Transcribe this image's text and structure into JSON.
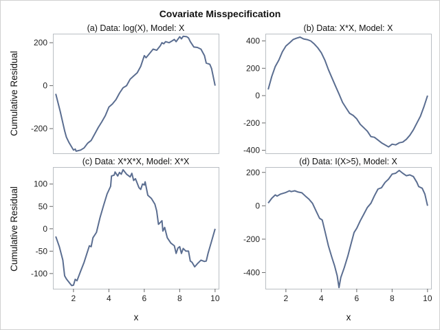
{
  "chart_data": {
    "title": "Covariate Misspecification",
    "ylabel": "Cumulative Residual",
    "xlabel": "x",
    "panels": [
      {
        "type": "line",
        "title": "(a) Data: log(X), Model: X",
        "xlim": [
          0.84,
          10.2
        ],
        "ylim": [
          -315,
          242
        ],
        "xticks": [
          2,
          4,
          6,
          8,
          10
        ],
        "yticks": [
          200,
          0,
          -200
        ],
        "points": [
          [
            1,
            -38
          ],
          [
            1.25,
            -120
          ],
          [
            1.5,
            -210
          ],
          [
            1.6,
            -240
          ],
          [
            1.75,
            -265
          ],
          [
            2,
            -300
          ],
          [
            2.1,
            -295
          ],
          [
            2.15,
            -305
          ],
          [
            2.4,
            -300
          ],
          [
            2.6,
            -290
          ],
          [
            2.8,
            -268
          ],
          [
            3,
            -255
          ],
          [
            3.2,
            -225
          ],
          [
            3.4,
            -195
          ],
          [
            3.6,
            -168
          ],
          [
            3.8,
            -140
          ],
          [
            4,
            -100
          ],
          [
            4.2,
            -85
          ],
          [
            4.4,
            -65
          ],
          [
            4.6,
            -35
          ],
          [
            4.8,
            -10
          ],
          [
            5,
            0
          ],
          [
            5.2,
            30
          ],
          [
            5.4,
            45
          ],
          [
            5.6,
            60
          ],
          [
            5.8,
            90
          ],
          [
            6,
            140
          ],
          [
            6.1,
            130
          ],
          [
            6.3,
            150
          ],
          [
            6.5,
            170
          ],
          [
            6.7,
            165
          ],
          [
            6.9,
            185
          ],
          [
            7,
            200
          ],
          [
            7.1,
            195
          ],
          [
            7.2,
            205
          ],
          [
            7.4,
            200
          ],
          [
            7.6,
            210
          ],
          [
            7.7,
            215
          ],
          [
            7.8,
            205
          ],
          [
            8,
            228
          ],
          [
            8.1,
            218
          ],
          [
            8.2,
            230
          ],
          [
            8.4,
            228
          ],
          [
            8.5,
            222
          ],
          [
            8.6,
            205
          ],
          [
            8.8,
            180
          ],
          [
            9,
            178
          ],
          [
            9.2,
            170
          ],
          [
            9.4,
            140
          ],
          [
            9.5,
            105
          ],
          [
            9.7,
            100
          ],
          [
            9.8,
            80
          ],
          [
            10,
            0
          ]
        ]
      },
      {
        "type": "line",
        "title": "(b) Data: X*X, Model: X",
        "xlim": [
          0.84,
          10.2
        ],
        "ylim": [
          -422,
          453
        ],
        "xticks": [
          2,
          4,
          6,
          8,
          10
        ],
        "yticks": [
          400,
          200,
          0,
          -200,
          -400
        ],
        "points": [
          [
            1,
            45
          ],
          [
            1.2,
            140
          ],
          [
            1.4,
            213
          ],
          [
            1.6,
            260
          ],
          [
            1.8,
            320
          ],
          [
            2,
            363
          ],
          [
            2.2,
            385
          ],
          [
            2.4,
            410
          ],
          [
            2.6,
            420
          ],
          [
            2.8,
            428
          ],
          [
            3,
            415
          ],
          [
            3.2,
            410
          ],
          [
            3.4,
            400
          ],
          [
            3.6,
            378
          ],
          [
            3.8,
            350
          ],
          [
            4,
            313
          ],
          [
            4.2,
            260
          ],
          [
            4.4,
            190
          ],
          [
            4.6,
            130
          ],
          [
            4.8,
            70
          ],
          [
            5,
            12
          ],
          [
            5.2,
            -50
          ],
          [
            5.4,
            -90
          ],
          [
            5.6,
            -130
          ],
          [
            5.8,
            -145
          ],
          [
            6,
            -170
          ],
          [
            6.2,
            -210
          ],
          [
            6.4,
            -235
          ],
          [
            6.6,
            -260
          ],
          [
            6.8,
            -300
          ],
          [
            7,
            -305
          ],
          [
            7.2,
            -325
          ],
          [
            7.4,
            -345
          ],
          [
            7.6,
            -360
          ],
          [
            7.8,
            -375
          ],
          [
            8,
            -355
          ],
          [
            8.2,
            -360
          ],
          [
            8.4,
            -345
          ],
          [
            8.6,
            -340
          ],
          [
            8.8,
            -320
          ],
          [
            9,
            -290
          ],
          [
            9.2,
            -250
          ],
          [
            9.4,
            -200
          ],
          [
            9.6,
            -150
          ],
          [
            9.8,
            -80
          ],
          [
            10,
            0
          ]
        ]
      },
      {
        "type": "line",
        "title": "(c) Data: X*X*X, Model: X*X",
        "xlim": [
          0.84,
          10.2
        ],
        "ylim": [
          -134,
          138
        ],
        "xticks": [
          2,
          4,
          6,
          8,
          10
        ],
        "yticks": [
          100,
          50,
          0,
          -50,
          -100
        ],
        "points": [
          [
            1,
            -17
          ],
          [
            1.2,
            -40
          ],
          [
            1.4,
            -70
          ],
          [
            1.5,
            -105
          ],
          [
            1.6,
            -112
          ],
          [
            1.8,
            -122
          ],
          [
            1.9,
            -127
          ],
          [
            2,
            -126
          ],
          [
            2.1,
            -113
          ],
          [
            2.2,
            -116
          ],
          [
            2.4,
            -95
          ],
          [
            2.6,
            -75
          ],
          [
            2.8,
            -50
          ],
          [
            2.9,
            -38
          ],
          [
            3,
            -40
          ],
          [
            3.1,
            -20
          ],
          [
            3.3,
            -8
          ],
          [
            3.5,
            25
          ],
          [
            3.7,
            52
          ],
          [
            3.9,
            78
          ],
          [
            4.1,
            95
          ],
          [
            4.15,
            118
          ],
          [
            4.3,
            120
          ],
          [
            4.35,
            127
          ],
          [
            4.5,
            118
          ],
          [
            4.6,
            126
          ],
          [
            4.7,
            122
          ],
          [
            4.8,
            132
          ],
          [
            5,
            122
          ],
          [
            5.2,
            116
          ],
          [
            5.3,
            124
          ],
          [
            5.4,
            108
          ],
          [
            5.5,
            112
          ],
          [
            5.7,
            92
          ],
          [
            5.8,
            88
          ],
          [
            5.9,
            100
          ],
          [
            6,
            98
          ],
          [
            6.05,
            105
          ],
          [
            6.2,
            75
          ],
          [
            6.4,
            68
          ],
          [
            6.6,
            55
          ],
          [
            6.7,
            40
          ],
          [
            6.8,
            10
          ],
          [
            7,
            18
          ],
          [
            7.05,
            -5
          ],
          [
            7.15,
            3
          ],
          [
            7.3,
            -20
          ],
          [
            7.5,
            -32
          ],
          [
            7.7,
            -38
          ],
          [
            7.8,
            -55
          ],
          [
            7.9,
            -43
          ],
          [
            8,
            -40
          ],
          [
            8.1,
            -55
          ],
          [
            8.2,
            -44
          ],
          [
            8.35,
            -50
          ],
          [
            8.5,
            -50
          ],
          [
            8.6,
            -72
          ],
          [
            8.7,
            -75
          ],
          [
            8.85,
            -85
          ],
          [
            9,
            -78
          ],
          [
            9.2,
            -70
          ],
          [
            9.4,
            -73
          ],
          [
            9.5,
            -72
          ],
          [
            9.6,
            -55
          ],
          [
            9.8,
            -28
          ],
          [
            10,
            0
          ]
        ]
      },
      {
        "type": "line",
        "title": "(d) Data: I(X>5), Model: X",
        "xlim": [
          0.84,
          10.2
        ],
        "ylim": [
          -497,
          232
        ],
        "xticks": [
          2,
          4,
          6,
          8,
          10
        ],
        "yticks": [
          200,
          0,
          -200,
          -400
        ],
        "points": [
          [
            1,
            16
          ],
          [
            1.2,
            45
          ],
          [
            1.4,
            65
          ],
          [
            1.5,
            58
          ],
          [
            1.7,
            70
          ],
          [
            2,
            80
          ],
          [
            2.2,
            90
          ],
          [
            2.3,
            85
          ],
          [
            2.5,
            90
          ],
          [
            2.7,
            82
          ],
          [
            2.9,
            78
          ],
          [
            3.1,
            58
          ],
          [
            3.3,
            40
          ],
          [
            3.5,
            15
          ],
          [
            3.7,
            -30
          ],
          [
            3.9,
            -75
          ],
          [
            4.05,
            -85
          ],
          [
            4.2,
            -150
          ],
          [
            4.4,
            -240
          ],
          [
            4.6,
            -310
          ],
          [
            4.75,
            -360
          ],
          [
            4.9,
            -420
          ],
          [
            5,
            -490
          ],
          [
            5.1,
            -430
          ],
          [
            5.3,
            -370
          ],
          [
            5.5,
            -300
          ],
          [
            5.7,
            -220
          ],
          [
            5.85,
            -160
          ],
          [
            6,
            -135
          ],
          [
            6.2,
            -90
          ],
          [
            6.4,
            -50
          ],
          [
            6.6,
            -10
          ],
          [
            6.8,
            15
          ],
          [
            7,
            60
          ],
          [
            7.2,
            100
          ],
          [
            7.4,
            108
          ],
          [
            7.6,
            140
          ],
          [
            7.8,
            160
          ],
          [
            8,
            190
          ],
          [
            8.2,
            195
          ],
          [
            8.4,
            212
          ],
          [
            8.6,
            195
          ],
          [
            8.8,
            180
          ],
          [
            9,
            185
          ],
          [
            9.2,
            175
          ],
          [
            9.4,
            140
          ],
          [
            9.5,
            115
          ],
          [
            9.7,
            105
          ],
          [
            9.85,
            70
          ],
          [
            10,
            0
          ]
        ]
      }
    ],
    "colors": {
      "series": "#5a6d90",
      "frame": "#b9bec3"
    }
  }
}
